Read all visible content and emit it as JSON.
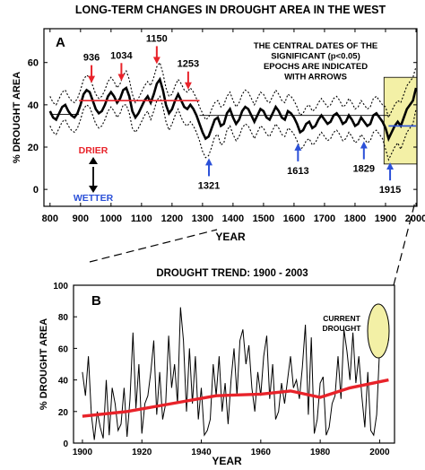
{
  "title": "LONG-TERM CHANGES IN DROUGHT AREA IN THE WEST",
  "chart_data": [
    {
      "panel_label": "A",
      "type": "line",
      "xlabel": "YEAR",
      "ylabel": "% DROUGHT AREA",
      "xlim": [
        780,
        2003
      ],
      "ylim": [
        -8,
        76
      ],
      "xticks": [
        800,
        900,
        1000,
        1100,
        1200,
        1300,
        1400,
        1500,
        1600,
        1700,
        1800,
        1900,
        2000
      ],
      "yticks": [
        0,
        20,
        40,
        60
      ],
      "note": "THE CENTRAL DATES OF THE SIGNIFICANT (p<0.05) EPOCHS ARE INDICATED WITH ARROWS",
      "drier_label": "DRIER",
      "wetter_label": "WETTER",
      "drier_color": "#e8232a",
      "wetter_color": "#2b50d8",
      "highlight_box": {
        "x": [
          1895,
          2003
        ],
        "y": [
          12,
          53
        ],
        "color": "#f3f0a6"
      },
      "series": [
        {
          "role": "smoothed",
          "x": [
            800,
            810,
            820,
            830,
            840,
            850,
            860,
            870,
            880,
            890,
            900,
            910,
            920,
            930,
            940,
            950,
            960,
            970,
            980,
            990,
            1000,
            1010,
            1020,
            1030,
            1040,
            1050,
            1060,
            1070,
            1080,
            1090,
            1100,
            1110,
            1120,
            1130,
            1140,
            1150,
            1160,
            1170,
            1180,
            1190,
            1200,
            1210,
            1220,
            1230,
            1240,
            1250,
            1260,
            1270,
            1280,
            1290,
            1300,
            1310,
            1320,
            1330,
            1340,
            1350,
            1360,
            1370,
            1380,
            1390,
            1400,
            1410,
            1420,
            1430,
            1440,
            1450,
            1460,
            1470,
            1480,
            1490,
            1500,
            1510,
            1520,
            1530,
            1540,
            1550,
            1560,
            1570,
            1580,
            1590,
            1600,
            1610,
            1620,
            1630,
            1640,
            1650,
            1660,
            1670,
            1680,
            1690,
            1700,
            1710,
            1720,
            1730,
            1740,
            1750,
            1760,
            1770,
            1780,
            1790,
            1800,
            1810,
            1820,
            1830,
            1840,
            1850,
            1860,
            1870,
            1880,
            1890,
            1900,
            1910,
            1920,
            1930,
            1940,
            1950,
            1960,
            1970,
            1980,
            1990,
            2000
          ],
          "values": [
            37,
            34,
            33,
            36,
            39,
            40,
            37,
            35,
            34,
            36,
            40,
            45,
            47,
            46,
            42,
            38,
            36,
            37,
            40,
            44,
            46,
            44,
            41,
            43,
            47,
            48,
            44,
            37,
            34,
            36,
            39,
            42,
            44,
            41,
            45,
            50,
            52,
            47,
            40,
            36,
            38,
            42,
            45,
            42,
            39,
            38,
            40,
            38,
            35,
            31,
            27,
            24,
            25,
            29,
            33,
            34,
            30,
            31,
            36,
            38,
            34,
            31,
            33,
            37,
            39,
            38,
            35,
            32,
            35,
            38,
            37,
            34,
            33,
            36,
            39,
            37,
            34,
            33,
            37,
            36,
            34,
            31,
            27,
            28,
            31,
            32,
            29,
            30,
            33,
            35,
            33,
            31,
            32,
            35,
            36,
            34,
            31,
            32,
            35,
            33,
            30,
            31,
            34,
            32,
            30,
            31,
            35,
            36,
            34,
            32,
            29,
            24,
            27,
            30,
            32,
            30,
            34,
            38,
            40,
            42,
            48
          ]
        },
        {
          "role": "upper-bound",
          "x": [
            800,
            810,
            820,
            830,
            840,
            850,
            860,
            870,
            880,
            890,
            900,
            910,
            920,
            930,
            940,
            950,
            960,
            970,
            980,
            990,
            1000,
            1010,
            1020,
            1030,
            1040,
            1050,
            1060,
            1070,
            1080,
            1090,
            1100,
            1110,
            1120,
            1130,
            1140,
            1150,
            1160,
            1170,
            1180,
            1190,
            1200,
            1210,
            1220,
            1230,
            1240,
            1250,
            1260,
            1270,
            1280,
            1290,
            1300,
            1310,
            1320,
            1330,
            1340,
            1350,
            1360,
            1370,
            1380,
            1390,
            1400,
            1410,
            1420,
            1430,
            1440,
            1450,
            1460,
            1470,
            1480,
            1490,
            1500,
            1510,
            1520,
            1530,
            1540,
            1550,
            1560,
            1570,
            1580,
            1590,
            1600,
            1610,
            1620,
            1630,
            1640,
            1650,
            1660,
            1670,
            1680,
            1690,
            1700,
            1710,
            1720,
            1730,
            1740,
            1750,
            1760,
            1770,
            1780,
            1790,
            1800,
            1810,
            1820,
            1830,
            1840,
            1850,
            1860,
            1870,
            1880,
            1890,
            1900,
            1910,
            1920,
            1930,
            1940,
            1950,
            1960,
            1970,
            1980,
            1990,
            2000
          ],
          "values": [
            44,
            41,
            40,
            43,
            46,
            47,
            44,
            42,
            41,
            43,
            47,
            52,
            54,
            53,
            49,
            45,
            43,
            44,
            47,
            51,
            53,
            51,
            48,
            50,
            54,
            56,
            52,
            45,
            41,
            43,
            46,
            49,
            51,
            49,
            53,
            58,
            60,
            55,
            48,
            44,
            45,
            49,
            52,
            50,
            47,
            46,
            48,
            46,
            43,
            39,
            36,
            33,
            34,
            38,
            41,
            42,
            39,
            40,
            44,
            46,
            42,
            39,
            41,
            45,
            47,
            46,
            43,
            40,
            43,
            46,
            45,
            42,
            41,
            44,
            47,
            45,
            42,
            41,
            45,
            44,
            42,
            39,
            35,
            36,
            39,
            40,
            37,
            38,
            41,
            43,
            41,
            39,
            40,
            43,
            44,
            42,
            39,
            40,
            43,
            41,
            38,
            39,
            42,
            40,
            38,
            39,
            43,
            44,
            42,
            40,
            39,
            34,
            37,
            40,
            42,
            41,
            45,
            49,
            51,
            53,
            58
          ]
        },
        {
          "role": "lower-bound",
          "x": [
            800,
            810,
            820,
            830,
            840,
            850,
            860,
            870,
            880,
            890,
            900,
            910,
            920,
            930,
            940,
            950,
            960,
            970,
            980,
            990,
            1000,
            1010,
            1020,
            1030,
            1040,
            1050,
            1060,
            1070,
            1080,
            1090,
            1100,
            1110,
            1120,
            1130,
            1140,
            1150,
            1160,
            1170,
            1180,
            1190,
            1200,
            1210,
            1220,
            1230,
            1240,
            1250,
            1260,
            1270,
            1280,
            1290,
            1300,
            1310,
            1320,
            1330,
            1340,
            1350,
            1360,
            1370,
            1380,
            1390,
            1400,
            1410,
            1420,
            1430,
            1440,
            1450,
            1460,
            1470,
            1480,
            1490,
            1500,
            1510,
            1520,
            1530,
            1540,
            1550,
            1560,
            1570,
            1580,
            1590,
            1600,
            1610,
            1620,
            1630,
            1640,
            1650,
            1660,
            1670,
            1680,
            1690,
            1700,
            1710,
            1720,
            1730,
            1740,
            1750,
            1760,
            1770,
            1780,
            1790,
            1800,
            1810,
            1820,
            1830,
            1840,
            1850,
            1860,
            1870,
            1880,
            1890,
            1900,
            1910,
            1920,
            1930,
            1940,
            1950,
            1960,
            1970,
            1980,
            1990,
            2000
          ],
          "values": [
            30,
            27,
            26,
            29,
            32,
            33,
            30,
            28,
            27,
            29,
            33,
            38,
            40,
            39,
            35,
            31,
            29,
            30,
            33,
            37,
            39,
            37,
            34,
            36,
            40,
            40,
            36,
            29,
            27,
            29,
            32,
            35,
            37,
            33,
            37,
            42,
            44,
            39,
            32,
            28,
            31,
            35,
            38,
            34,
            31,
            30,
            32,
            30,
            27,
            23,
            18,
            15,
            16,
            20,
            25,
            26,
            21,
            22,
            28,
            30,
            26,
            23,
            25,
            29,
            31,
            30,
            27,
            24,
            27,
            30,
            29,
            26,
            25,
            28,
            31,
            29,
            26,
            25,
            29,
            28,
            26,
            23,
            19,
            20,
            23,
            24,
            21,
            22,
            25,
            27,
            25,
            23,
            24,
            27,
            28,
            26,
            23,
            24,
            27,
            25,
            22,
            23,
            26,
            24,
            22,
            23,
            27,
            28,
            26,
            24,
            19,
            14,
            17,
            20,
            22,
            19,
            23,
            27,
            29,
            31,
            38
          ]
        },
        {
          "role": "epoch-means",
          "segments": [
            {
              "x": [
                800,
                895
              ],
              "y": 35.5
            },
            {
              "x": [
                895,
                1290
              ],
              "y": 42
            },
            {
              "x": [
                1290,
                1910
              ],
              "y": 35
            },
            {
              "x": [
                1910,
                2000
              ],
              "y": 30
            }
          ]
        }
      ],
      "drier_epochs": [
        936,
        1034,
        1150,
        1253
      ],
      "wetter_epochs": [
        1321,
        1613,
        1829,
        1915
      ]
    },
    {
      "panel_label": "B",
      "type": "line",
      "title": "DROUGHT TREND:  1900 - 2003",
      "xlabel": "YEAR",
      "ylabel": "% DROUGHT AREA",
      "xlim": [
        1897,
        2005
      ],
      "ylim": [
        0,
        100
      ],
      "xticks": [
        1900,
        1920,
        1940,
        1960,
        1980,
        2000
      ],
      "yticks": [
        0,
        20,
        40,
        60,
        80,
        100
      ],
      "annotation": "CURRENT DROUGHT",
      "annotation_color": "#f3f0a6",
      "series": [
        {
          "role": "annual",
          "x": [
            1900,
            1901,
            1902,
            1903,
            1904,
            1905,
            1906,
            1907,
            1908,
            1909,
            1910,
            1911,
            1912,
            1913,
            1914,
            1915,
            1916,
            1917,
            1918,
            1919,
            1920,
            1921,
            1922,
            1923,
            1924,
            1925,
            1926,
            1927,
            1928,
            1929,
            1930,
            1931,
            1932,
            1933,
            1934,
            1935,
            1936,
            1937,
            1938,
            1939,
            1940,
            1941,
            1942,
            1943,
            1944,
            1945,
            1946,
            1947,
            1948,
            1949,
            1950,
            1951,
            1952,
            1953,
            1954,
            1955,
            1956,
            1957,
            1958,
            1959,
            1960,
            1961,
            1962,
            1963,
            1964,
            1965,
            1966,
            1967,
            1968,
            1969,
            1970,
            1971,
            1972,
            1973,
            1974,
            1975,
            1976,
            1977,
            1978,
            1979,
            1980,
            1981,
            1982,
            1983,
            1984,
            1985,
            1986,
            1987,
            1988,
            1989,
            1990,
            1991,
            1992,
            1993,
            1994,
            1995,
            1996,
            1997,
            1998,
            1999,
            2000,
            2001,
            2002,
            2003
          ],
          "values": [
            45,
            30,
            55,
            18,
            2,
            20,
            10,
            3,
            40,
            5,
            35,
            25,
            8,
            12,
            35,
            4,
            28,
            70,
            22,
            50,
            6,
            25,
            30,
            45,
            65,
            18,
            45,
            15,
            25,
            68,
            35,
            50,
            25,
            86,
            65,
            20,
            60,
            25,
            55,
            15,
            35,
            5,
            8,
            15,
            50,
            30,
            55,
            20,
            38,
            12,
            40,
            60,
            30,
            65,
            72,
            50,
            62,
            35,
            20,
            45,
            30,
            55,
            68,
            28,
            50,
            15,
            20,
            38,
            25,
            40,
            55,
            35,
            40,
            28,
            48,
            75,
            18,
            67,
            6,
            15,
            38,
            42,
            5,
            10,
            25,
            30,
            55,
            28,
            72,
            58,
            40,
            70,
            38,
            55,
            30,
            10,
            45,
            8,
            5,
            18,
            60,
            72,
            80,
            65
          ]
        },
        {
          "role": "trend",
          "x": [
            1900,
            1915,
            1930,
            1945,
            1960,
            1970,
            1980,
            1990,
            2003
          ],
          "values": [
            17,
            20,
            25,
            30,
            31,
            33,
            29,
            35,
            40
          ]
        }
      ]
    }
  ]
}
